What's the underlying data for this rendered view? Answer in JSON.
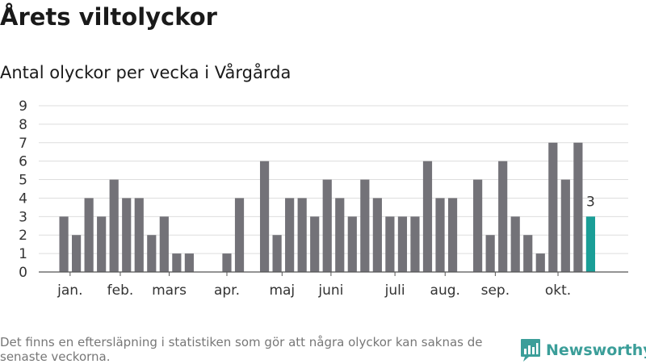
{
  "header": {
    "title": "Årets viltolyckor",
    "subtitle": "Antal olyckor per vecka i Vårgårda"
  },
  "footer": {
    "note": "Det finns en eftersläpning i statistiken som gör att några olyckor kan saknas de senaste veckorna.",
    "brand": "Newsworthy"
  },
  "colors": {
    "bar": "#737278",
    "highlight": "#1a9e97",
    "grid": "#dddddd",
    "axis": "#555555",
    "brand": "#3b9e99"
  },
  "chart_data": {
    "type": "bar",
    "title": "Årets viltolyckor",
    "subtitle": "Antal olyckor per vecka i Vårgårda",
    "x_unit": "vecka",
    "x": [
      2,
      3,
      4,
      5,
      6,
      7,
      8,
      9,
      10,
      11,
      12,
      13,
      14,
      15,
      16,
      17,
      18,
      19,
      20,
      21,
      22,
      23,
      24,
      25,
      26,
      27,
      28,
      29,
      30,
      31,
      32,
      33,
      34,
      35,
      36,
      37,
      38,
      39,
      40,
      41,
      42,
      43,
      44
    ],
    "values": [
      3,
      2,
      4,
      3,
      5,
      4,
      4,
      2,
      3,
      1,
      1,
      0,
      0,
      1,
      4,
      0,
      6,
      2,
      4,
      4,
      3,
      5,
      4,
      3,
      5,
      4,
      3,
      3,
      3,
      6,
      4,
      4,
      0,
      5,
      2,
      6,
      3,
      2,
      1,
      7,
      5,
      7,
      3
    ],
    "highlight_last": true,
    "last_value_label": "3",
    "month_labels": [
      {
        "label": "jan.",
        "at": 2.5
      },
      {
        "label": "feb.",
        "at": 6.5
      },
      {
        "label": "mars",
        "at": 10.4
      },
      {
        "label": "apr.",
        "at": 15
      },
      {
        "label": "maj",
        "at": 19.4
      },
      {
        "label": "juni",
        "at": 23.3
      },
      {
        "label": "juli",
        "at": 28.4
      },
      {
        "label": "aug.",
        "at": 32.4
      },
      {
        "label": "sep.",
        "at": 36.4
      },
      {
        "label": "okt.",
        "at": 41.4
      }
    ],
    "y_ticks": [
      0,
      1,
      2,
      3,
      4,
      5,
      6,
      7,
      8,
      9
    ],
    "ylim": [
      0,
      9
    ],
    "xlim": [
      0,
      47
    ],
    "grid": true,
    "legend": "none"
  }
}
